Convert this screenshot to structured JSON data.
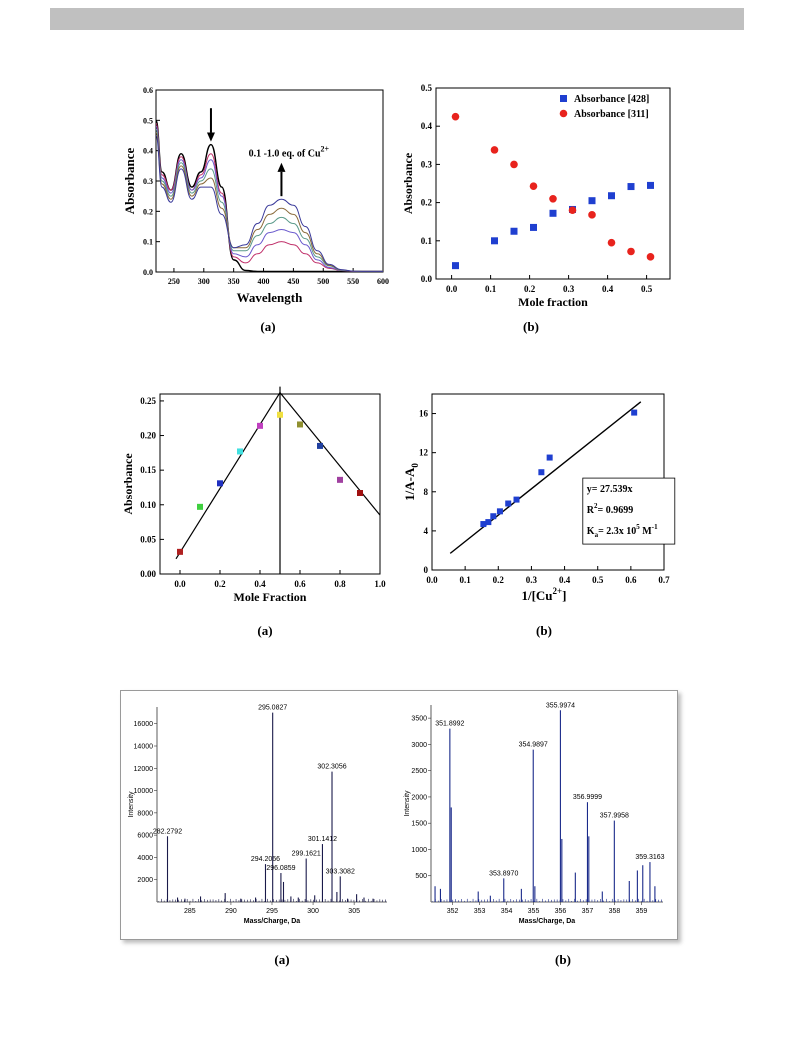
{
  "page": {
    "header_color": "#c0c0c0"
  },
  "captions": {
    "r1a": "(a)",
    "r1b": "(b)",
    "r2a": "(a)",
    "r2b": "(b)",
    "r3a": "(a)",
    "r3b": "(b)"
  },
  "chart_data": [
    {
      "id": "uv_titration",
      "type": "line",
      "xlabel": "Wavelength",
      "ylabel": "Absorbance",
      "xlim": [
        220,
        600
      ],
      "ylim": [
        0,
        0.6
      ],
      "xticks": [
        250,
        300,
        350,
        400,
        450,
        500,
        550,
        600
      ],
      "yticks": [
        0.0,
        0.1,
        0.2,
        0.3,
        0.4,
        0.5,
        0.6
      ],
      "annotation": {
        "text": "0.1 -1.0 eq. of Cu",
        "sup": "2+"
      },
      "x": [
        220,
        230,
        245,
        262,
        280,
        295,
        312,
        330,
        350,
        370,
        390,
        410,
        430,
        450,
        470,
        490,
        510,
        530,
        550,
        570,
        600
      ],
      "series": [
        {
          "values": [
            0.5,
            0.33,
            0.27,
            0.39,
            0.28,
            0.33,
            0.42,
            0.28,
            0.04,
            0.005,
            0.002,
            0.002,
            0.002,
            0.002,
            0.002,
            0.002,
            0.002,
            0.002,
            0.002,
            0.002,
            0.002
          ]
        },
        {
          "values": [
            0.49,
            0.32,
            0.27,
            0.38,
            0.27,
            0.32,
            0.39,
            0.26,
            0.05,
            0.03,
            0.06,
            0.09,
            0.1,
            0.09,
            0.06,
            0.03,
            0.012,
            0.005,
            0.002,
            0.002,
            0.002
          ]
        },
        {
          "values": [
            0.48,
            0.31,
            0.26,
            0.37,
            0.27,
            0.31,
            0.37,
            0.25,
            0.06,
            0.05,
            0.09,
            0.13,
            0.14,
            0.13,
            0.09,
            0.04,
            0.015,
            0.005,
            0.003,
            0.002,
            0.002
          ]
        },
        {
          "values": [
            0.47,
            0.3,
            0.25,
            0.36,
            0.26,
            0.3,
            0.34,
            0.23,
            0.07,
            0.07,
            0.12,
            0.16,
            0.18,
            0.16,
            0.11,
            0.05,
            0.02,
            0.006,
            0.003,
            0.002,
            0.002
          ]
        },
        {
          "values": [
            0.46,
            0.29,
            0.24,
            0.35,
            0.25,
            0.29,
            0.31,
            0.21,
            0.08,
            0.08,
            0.14,
            0.19,
            0.21,
            0.19,
            0.13,
            0.06,
            0.022,
            0.007,
            0.003,
            0.002,
            0.002
          ]
        },
        {
          "values": [
            0.45,
            0.28,
            0.23,
            0.34,
            0.24,
            0.28,
            0.28,
            0.19,
            0.08,
            0.09,
            0.16,
            0.22,
            0.24,
            0.22,
            0.15,
            0.07,
            0.025,
            0.008,
            0.003,
            0.002,
            0.002
          ]
        }
      ],
      "colors": [
        "#000000",
        "#c0306a",
        "#6a5acd",
        "#5a9a8a",
        "#8a6a3a",
        "#3a3a9a"
      ],
      "arrows": [
        {
          "x": 312,
          "dir": "down"
        },
        {
          "x": 430,
          "dir": "up"
        }
      ]
    },
    {
      "id": "abs_vs_mole_fraction",
      "type": "scatter",
      "xlabel": "Mole fraction",
      "ylabel": "Absorbance",
      "xlim": [
        -0.04,
        0.56
      ],
      "ylim": [
        0,
        0.5
      ],
      "xticks": [
        0.0,
        0.1,
        0.2,
        0.3,
        0.4,
        0.5
      ],
      "yticks": [
        0.0,
        0.1,
        0.2,
        0.3,
        0.4,
        0.5
      ],
      "legend_position": "top-right",
      "series": [
        {
          "name": "Absorbance [428]",
          "color": "#1f3fd0",
          "marker": "square",
          "x": [
            0.01,
            0.11,
            0.16,
            0.21,
            0.26,
            0.31,
            0.36,
            0.41,
            0.46,
            0.51
          ],
          "y": [
            0.035,
            0.1,
            0.125,
            0.135,
            0.172,
            0.182,
            0.205,
            0.218,
            0.242,
            0.245
          ]
        },
        {
          "name": "Absorbance [311]",
          "color": "#e8231d",
          "marker": "circle",
          "x": [
            0.01,
            0.11,
            0.16,
            0.21,
            0.26,
            0.31,
            0.36,
            0.41,
            0.46,
            0.51
          ],
          "y": [
            0.425,
            0.338,
            0.3,
            0.243,
            0.21,
            0.18,
            0.168,
            0.095,
            0.072,
            0.058
          ]
        }
      ]
    },
    {
      "id": "job_plot",
      "type": "scatter",
      "xlabel": "Mole Fraction",
      "ylabel": "Absorbance",
      "xlim": [
        -0.1,
        1.0
      ],
      "ylim": [
        0,
        0.26
      ],
      "xticks": [
        "0.0",
        "0.2",
        "0.4",
        "0.6",
        "0.8",
        "1.0"
      ],
      "yticks": [
        "0.00",
        "0.05",
        "0.10",
        "0.15",
        "0.20",
        "0.25"
      ],
      "x": [
        0.0,
        0.1,
        0.2,
        0.3,
        0.4,
        0.5,
        0.6,
        0.7,
        0.8,
        0.9
      ],
      "y": [
        0.032,
        0.097,
        0.131,
        0.177,
        0.214,
        0.23,
        0.216,
        0.185,
        0.136,
        0.117
      ],
      "colors": [
        "#b02020",
        "#40d040",
        "#2030c0",
        "#40e0e0",
        "#c040c0",
        "#f0e040",
        "#909030",
        "#2040a0",
        "#a040a0",
        "#a01010"
      ],
      "lines": [
        {
          "x": [
            -0.02,
            0.5
          ],
          "y": [
            0.022,
            0.262
          ]
        },
        {
          "x": [
            0.5,
            1.0
          ],
          "y": [
            0.262,
            0.085
          ]
        }
      ],
      "vline": 0.5
    },
    {
      "id": "benesi_hildebrand",
      "type": "scatter",
      "xlabel": "1/[Cu",
      "xlabel_sup": "2+",
      "xlabel_end": "]",
      "ylabel": "1/A-A",
      "ylabel_sub": "0",
      "xlim": [
        0,
        0.7
      ],
      "ylim": [
        0,
        18
      ],
      "xticks": [
        "0.0",
        "0.1",
        "0.2",
        "0.3",
        "0.4",
        "0.5",
        "0.6",
        "0.7"
      ],
      "yticks": [
        "0",
        "4",
        "8",
        "12",
        "16"
      ],
      "x": [
        0.155,
        0.17,
        0.185,
        0.205,
        0.23,
        0.255,
        0.33,
        0.355,
        0.61
      ],
      "y": [
        4.7,
        4.9,
        5.5,
        6.0,
        6.8,
        7.2,
        10.0,
        11.5,
        16.1
      ],
      "color": "#1f3fd0",
      "fit": {
        "x": [
          0.055,
          0.63
        ],
        "y": [
          1.7,
          17.2
        ]
      },
      "annotation": {
        "equation": "y= 27.539x",
        "r2_label": "R",
        "r2_value": "= 0.9699",
        "ka_label": "K",
        "ka_sub": "a",
        "ka_value": "= 2.3x 10",
        "ka_exp": "5",
        "ka_unit": " M",
        "ka_unit_exp": "-1"
      }
    },
    {
      "id": "ms_a",
      "type": "bar",
      "xlabel": "Mass/Charge, Da",
      "ylabel": "Intensity",
      "xlim": [
        281,
        309
      ],
      "ylim": [
        0,
        17500
      ],
      "xticks": [
        285,
        290,
        295,
        300,
        305
      ],
      "yticks": [
        2000,
        4000,
        6000,
        8000,
        10000,
        12000,
        14000,
        16000
      ],
      "peaks": [
        {
          "x": 282.2792,
          "y": 5900,
          "label": "282.2792"
        },
        {
          "x": 294.2066,
          "y": 3400,
          "label": "294.2066"
        },
        {
          "x": 295.0827,
          "y": 17000,
          "label": "295.0827"
        },
        {
          "x": 296.0859,
          "y": 2600,
          "label": "296.0859"
        },
        {
          "x": 299.1621,
          "y": 3900,
          "label": "299.1621"
        },
        {
          "x": 301.1412,
          "y": 5200,
          "label": "301.1412"
        },
        {
          "x": 302.3056,
          "y": 11700,
          "label": "302.3056"
        },
        {
          "x": 303.3082,
          "y": 2300,
          "label": "303.3082"
        },
        {
          "x": 283.5,
          "y": 400
        },
        {
          "x": 284.4,
          "y": 300
        },
        {
          "x": 286.3,
          "y": 500
        },
        {
          "x": 289.3,
          "y": 800
        },
        {
          "x": 291.2,
          "y": 300
        },
        {
          "x": 293.0,
          "y": 400
        },
        {
          "x": 296.4,
          "y": 1800
        },
        {
          "x": 297.3,
          "y": 500
        },
        {
          "x": 298.2,
          "y": 400
        },
        {
          "x": 300.2,
          "y": 600
        },
        {
          "x": 302.9,
          "y": 900
        },
        {
          "x": 304.2,
          "y": 300
        },
        {
          "x": 305.3,
          "y": 700
        },
        {
          "x": 306.2,
          "y": 400
        },
        {
          "x": 307.3,
          "y": 300
        }
      ],
      "color": "#1a1a4a"
    },
    {
      "id": "ms_b",
      "type": "bar",
      "xlabel": "Mass/Charge, Da",
      "ylabel": "Intensity",
      "xlim": [
        351.2,
        359.8
      ],
      "ylim": [
        0,
        3750
      ],
      "xticks": [
        352,
        353,
        354,
        355,
        356,
        357,
        358,
        359
      ],
      "yticks": [
        500,
        1000,
        1500,
        2000,
        2500,
        3000,
        3500
      ],
      "peaks": [
        {
          "x": 351.8992,
          "y": 3300,
          "label": "351.8992"
        },
        {
          "x": 353.897,
          "y": 450,
          "label": "353.8970"
        },
        {
          "x": 354.9897,
          "y": 2900,
          "label": "354.9897"
        },
        {
          "x": 355.9974,
          "y": 3650,
          "label": "355.9974"
        },
        {
          "x": 356.9999,
          "y": 1900,
          "label": "356.9999"
        },
        {
          "x": 357.9958,
          "y": 1550,
          "label": "357.9958"
        },
        {
          "x": 359.3163,
          "y": 760,
          "label": "359.3163"
        },
        {
          "x": 351.95,
          "y": 1800
        },
        {
          "x": 352.95,
          "y": 200
        },
        {
          "x": 353.4,
          "y": 120
        },
        {
          "x": 354.55,
          "y": 250
        },
        {
          "x": 355.05,
          "y": 300
        },
        {
          "x": 356.05,
          "y": 1200
        },
        {
          "x": 356.55,
          "y": 560
        },
        {
          "x": 357.05,
          "y": 1250
        },
        {
          "x": 357.55,
          "y": 200
        },
        {
          "x": 358.55,
          "y": 400
        },
        {
          "x": 358.85,
          "y": 600
        },
        {
          "x": 359.05,
          "y": 700
        },
        {
          "x": 359.5,
          "y": 300
        },
        {
          "x": 351.35,
          "y": 300
        },
        {
          "x": 351.55,
          "y": 250
        }
      ],
      "color": "#1a2a8a"
    }
  ]
}
